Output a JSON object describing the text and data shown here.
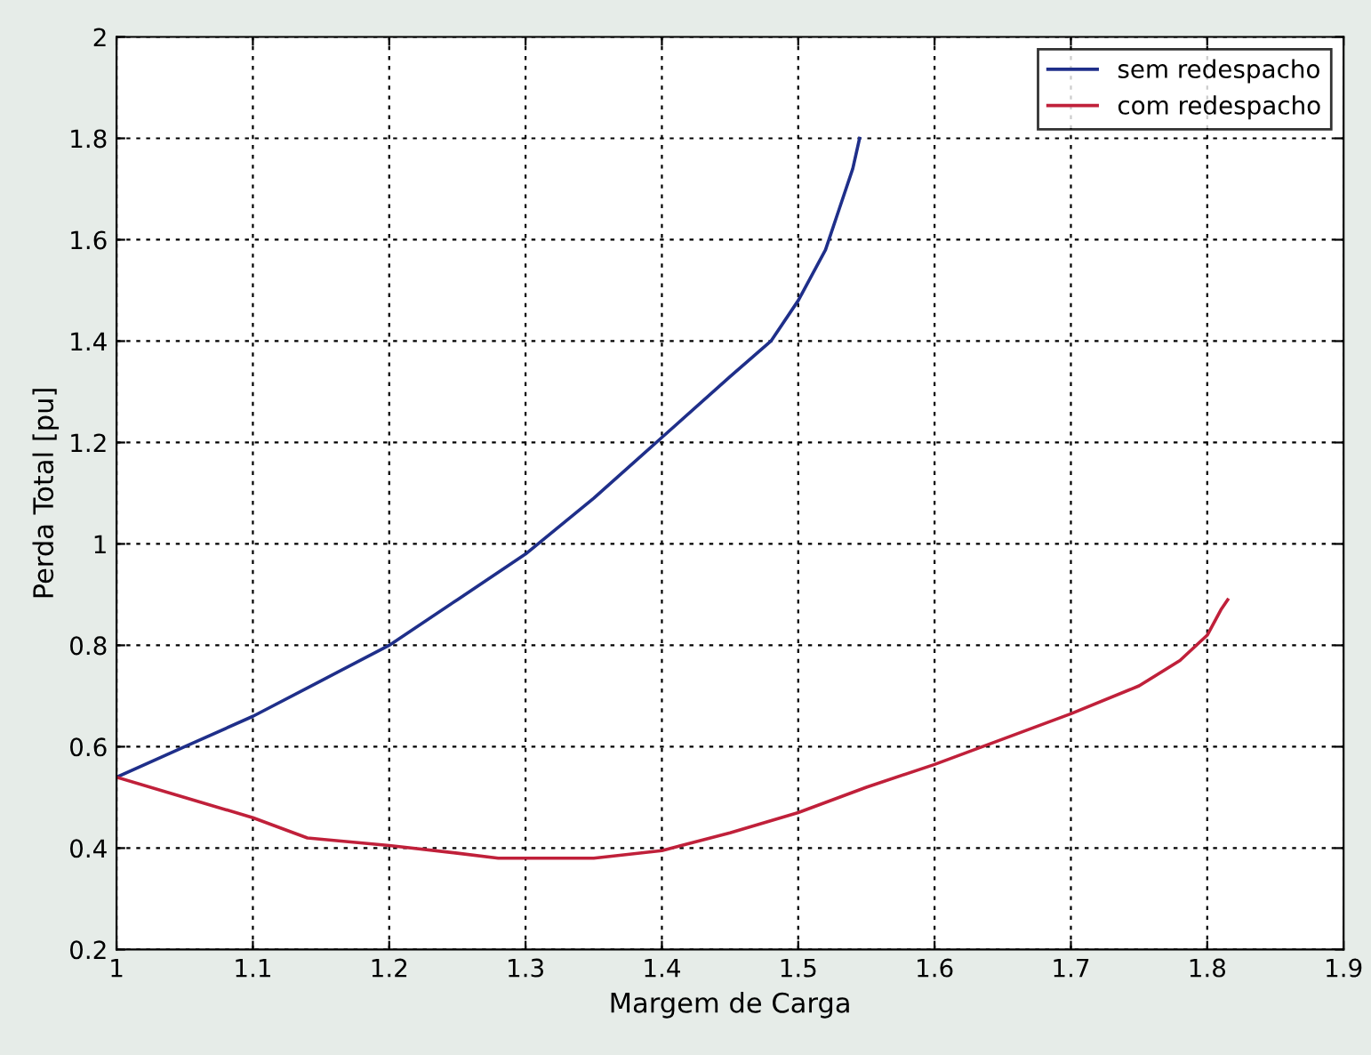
{
  "chart_data": {
    "type": "line",
    "xlabel": "Margem de Carga",
    "ylabel": "Perda Total [pu]",
    "xlim": [
      1,
      1.9
    ],
    "xticks": [
      1,
      1.1,
      1.2,
      1.3,
      1.4,
      1.5,
      1.6,
      1.7,
      1.8,
      1.9
    ],
    "ylim": [
      0.2,
      2
    ],
    "yticks": [
      0.2,
      0.4,
      0.6,
      0.8,
      1,
      1.2,
      1.4,
      1.6,
      1.8,
      2
    ],
    "grid": true,
    "legend": "top right",
    "line_style": "solid",
    "marker": "none",
    "series": [
      {
        "name": "sem redespacho",
        "color": "#1f2f8a",
        "x": [
          1.0,
          1.05,
          1.1,
          1.15,
          1.2,
          1.25,
          1.3,
          1.35,
          1.4,
          1.45,
          1.48,
          1.5,
          1.52,
          1.53,
          1.54,
          1.545
        ],
        "values": [
          0.54,
          0.6,
          0.66,
          0.73,
          0.8,
          0.89,
          0.98,
          1.09,
          1.21,
          1.33,
          1.4,
          1.48,
          1.58,
          1.66,
          1.74,
          1.8
        ]
      },
      {
        "name": "com redespacho",
        "color": "#c0203a",
        "x": [
          1.0,
          1.05,
          1.1,
          1.14,
          1.2,
          1.25,
          1.28,
          1.35,
          1.4,
          1.45,
          1.5,
          1.55,
          1.6,
          1.65,
          1.7,
          1.75,
          1.78,
          1.8,
          1.81,
          1.815
        ],
        "values": [
          0.54,
          0.5,
          0.46,
          0.42,
          0.405,
          0.39,
          0.38,
          0.38,
          0.395,
          0.43,
          0.47,
          0.52,
          0.565,
          0.615,
          0.665,
          0.72,
          0.77,
          0.82,
          0.87,
          0.89
        ]
      }
    ]
  }
}
